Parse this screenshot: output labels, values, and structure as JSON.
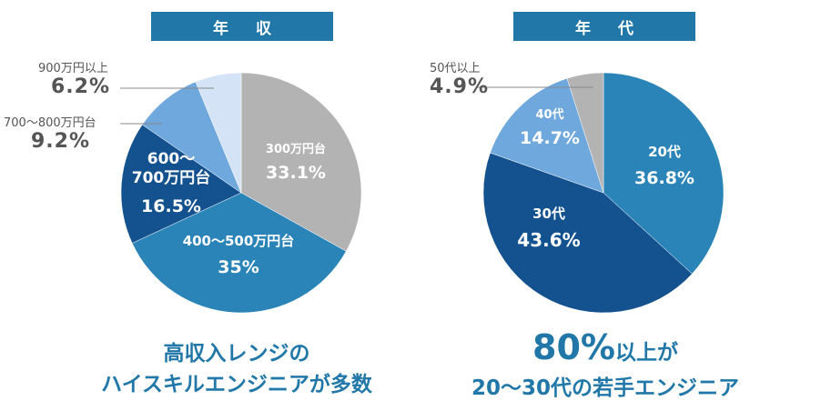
{
  "chart_data": [
    {
      "type": "pie",
      "title": "年 収",
      "slices": [
        {
          "label": "300万円台",
          "value": 33.1,
          "display": "33.1%",
          "color": "#b3b3b3"
        },
        {
          "label": "400〜500万円台",
          "value": 35,
          "display": "35%",
          "color": "#2a84b8"
        },
        {
          "label": "600〜\n700万円台",
          "value": 16.5,
          "display": "16.5%",
          "color": "#14528f"
        },
        {
          "label": "700〜800万円台",
          "value": 9.2,
          "display": "9.2%",
          "color": "#6fa8dc"
        },
        {
          "label": "900万円以上",
          "value": 6.2,
          "display": "6.2%",
          "color": "#d4e4f6"
        }
      ]
    },
    {
      "type": "pie",
      "title": "年 代",
      "slices": [
        {
          "label": "20代",
          "value": 36.8,
          "display": "36.8%",
          "color": "#2a84b8"
        },
        {
          "label": "30代",
          "value": 43.6,
          "display": "43.6%",
          "color": "#14528f"
        },
        {
          "label": "40代",
          "value": 14.7,
          "display": "14.7%",
          "color": "#6fa8dc"
        },
        {
          "label": "50代以上",
          "value": 4.9,
          "display": "4.9%",
          "color": "#b3b3b3"
        }
      ]
    }
  ],
  "captions": {
    "left": {
      "line1": "高収入レンジの",
      "line2": "ハイスキルエンジニアが多数"
    },
    "right": {
      "big": "80%",
      "rest1": "以上が",
      "line2": "20〜30代の若手エンジニア"
    }
  },
  "colors": {
    "accent": "#2178a8",
    "callout_text": "#555555"
  }
}
